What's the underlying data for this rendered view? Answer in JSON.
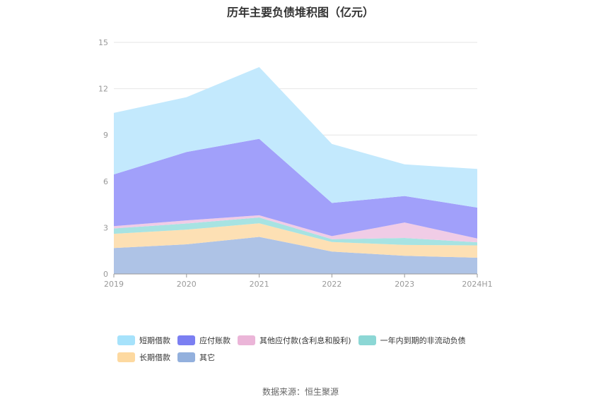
{
  "title": "历年主要负债堆积图（亿元）",
  "source": "数据来源：恒生聚源",
  "chart_data": {
    "type": "area",
    "stacked": true,
    "categories": [
      "2019",
      "2020",
      "2021",
      "2022",
      "2023",
      "2024H1"
    ],
    "ylim": [
      0,
      15
    ],
    "yticks": [
      0,
      3,
      6,
      9,
      12,
      15
    ],
    "grid": true,
    "legend_position": "bottom",
    "series": [
      {
        "name": "其它",
        "color": "#aec3e6",
        "values": [
          1.68,
          1.92,
          2.4,
          1.45,
          1.18,
          1.05
        ]
      },
      {
        "name": "长期借款",
        "color": "#fde0b4",
        "values": [
          0.92,
          0.95,
          0.88,
          0.62,
          0.7,
          0.8
        ]
      },
      {
        "name": "一年内到期的非流动负债",
        "color": "#a7e3e2",
        "values": [
          0.35,
          0.4,
          0.38,
          0.18,
          0.45,
          0.2
        ]
      },
      {
        "name": "其他应付款(含利息和股利)",
        "color": "#f0cce6",
        "values": [
          0.15,
          0.2,
          0.14,
          0.2,
          1.0,
          0.25
        ]
      },
      {
        "name": "应付账款",
        "color": "#a1a0fa",
        "values": [
          3.35,
          4.43,
          4.95,
          2.15,
          1.72,
          2.0
        ]
      },
      {
        "name": "短期借款",
        "color": "#c3e9fd",
        "values": [
          3.98,
          3.55,
          4.65,
          3.82,
          2.05,
          2.5
        ]
      }
    ]
  },
  "legend": {
    "rows": [
      [
        {
          "name": "短期借款",
          "swatch": "#a6e2fb"
        },
        {
          "name": "应付账款",
          "swatch": "#7b7ff2"
        },
        {
          "name": "其他应付款(含利息和股利)",
          "swatch": "#ebb5d8"
        },
        {
          "name": "一年内到期的非流动负债",
          "swatch": "#8cd7d5"
        }
      ],
      [
        {
          "name": "长期借款",
          "swatch": "#fdd9a0"
        },
        {
          "name": "其它",
          "swatch": "#93b0dd"
        }
      ]
    ]
  }
}
